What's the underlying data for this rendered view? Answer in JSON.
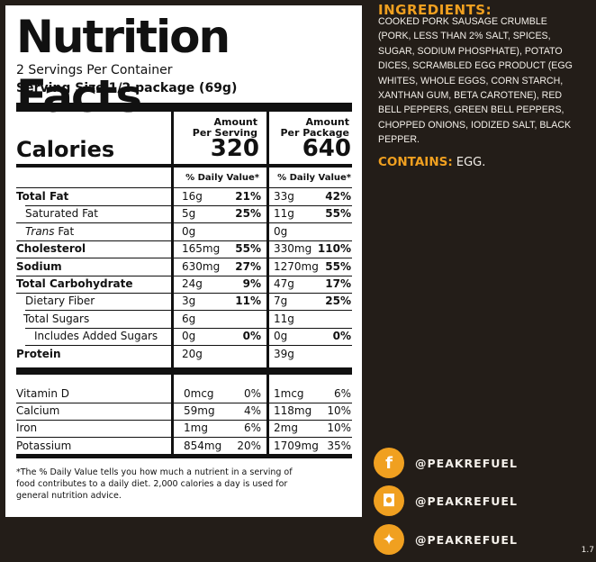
{
  "label": {
    "title": "Nutrition Facts",
    "servings_per_container": "2 Servings Per Container",
    "serving_size": "Serving Size 1/2 package (69g)",
    "calories_label": "Calories",
    "per_serving_head_1": "Amount",
    "per_serving_head_2": "Per Serving",
    "per_package_head_1": "Amount",
    "per_package_head_2": "Per Package",
    "calories_per_serving": "320",
    "calories_per_package": "640",
    "dv_head": "% Daily Value*",
    "rows": [
      {
        "label": "Total Fat",
        "bold": true,
        "ps": "16g",
        "psdv": "21%",
        "pp": "33g",
        "ppdv": "42%"
      },
      {
        "label": "Saturated Fat",
        "bold": false,
        "ps": "5g",
        "psdv": "25%",
        "pp": "11g",
        "ppdv": "55%"
      },
      {
        "label": "Trans Fat",
        "bold": false,
        "ps": "0g",
        "psdv": "",
        "pp": "0g",
        "ppdv": ""
      },
      {
        "label": "Cholesterol",
        "bold": true,
        "ps": "165mg",
        "psdv": "55%",
        "pp": "330mg",
        "ppdv": "110%"
      },
      {
        "label": "Sodium",
        "bold": true,
        "ps": "630mg",
        "psdv": "27%",
        "pp": "1270mg",
        "ppdv": "55%"
      },
      {
        "label": "Total Carbohydrate",
        "bold": true,
        "ps": "24g",
        "psdv": "9%",
        "pp": "47g",
        "ppdv": "17%"
      },
      {
        "label": "Dietary Fiber",
        "bold": false,
        "ps": "3g",
        "psdv": "11%",
        "pp": "7g",
        "ppdv": "25%"
      },
      {
        "label": "Total Sugars",
        "bold": false,
        "ps": "6g",
        "psdv": "",
        "pp": "11g",
        "ppdv": ""
      },
      {
        "label": "Includes Added Sugars",
        "bold": false,
        "ps": "0g",
        "psdv": "0%",
        "pp": "0g",
        "ppdv": "0%"
      },
      {
        "label": "Protein",
        "bold": true,
        "ps": "20g",
        "psdv": "",
        "pp": "39g",
        "ppdv": ""
      }
    ],
    "vitamins": [
      {
        "label": "Vitamin D",
        "ps": "0mcg",
        "psdv": "0%",
        "pp": "1mcg",
        "ppdv": "6%"
      },
      {
        "label": "Calcium",
        "ps": "59mg",
        "psdv": "4%",
        "pp": "118mg",
        "ppdv": "10%"
      },
      {
        "label": "Iron",
        "ps": "1mg",
        "psdv": "6%",
        "pp": "2mg",
        "ppdv": "10%"
      },
      {
        "label": "Potassium",
        "ps": "854mg",
        "psdv": "20%",
        "pp": "1709mg",
        "ppdv": "35%"
      }
    ],
    "footnote": "*The % Daily Value tells you how much a nutrient in a serving of food contributes to a daily diet. 2,000 calories a day is used for general nutrition advice."
  },
  "ingredients": {
    "heading": "INGREDIENTS:",
    "text": "COOKED PORK SAUSAGE CRUMBLE (PORK, LESS THAN 2% SALT, SPICES, SUGAR, SODIUM PHOSPHATE), POTATO DICES, SCRAMBLED EGG PRODUCT (EGG WHITES, WHOLE EGGS, CORN STARCH, XANTHAN GUM, BETA CAROTENE), RED BELL PEPPERS, GREEN BELL PEPPERS, CHOPPED ONIONS, IODIZED SALT, BLACK PEPPER.",
    "contains_label": "CONTAINS:",
    "contains_value": "EGG."
  },
  "social": [
    {
      "icon": "facebook-icon",
      "glyph": "f",
      "handle": "@PEAKREFUEL"
    },
    {
      "icon": "instagram-icon",
      "glyph": "◘",
      "handle": "@PEAKREFUEL"
    },
    {
      "icon": "twitter-icon",
      "glyph": "✦",
      "handle": "@PEAKREFUEL"
    }
  ],
  "corner_text": "1.7",
  "colors": {
    "background": "#231d18",
    "accent": "#f0a020",
    "panel": "#ffffff"
  }
}
